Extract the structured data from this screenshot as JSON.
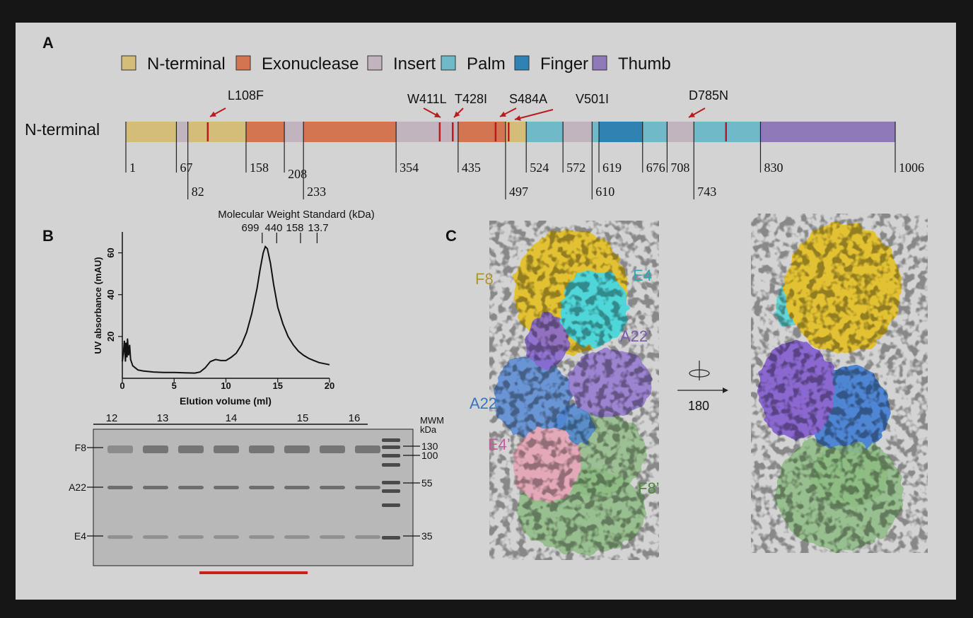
{
  "panel_a": {
    "label": "A",
    "row_label": "N-terminal",
    "legend": [
      {
        "label": "N-terminal",
        "color": "#d3bd78"
      },
      {
        "label": "Exonuclease",
        "color": "#d27550"
      },
      {
        "label": "Insert",
        "color": "#c2b4bf"
      },
      {
        "label": "Palm",
        "color": "#6fb9c8"
      },
      {
        "label": "Finger",
        "color": "#2f82b2"
      },
      {
        "label": "Thumb",
        "color": "#8f79b9"
      }
    ],
    "domains": [
      {
        "start": 1,
        "end": 67,
        "domain": "N-terminal"
      },
      {
        "start": 67,
        "end": 82,
        "domain": "Insert"
      },
      {
        "start": 82,
        "end": 158,
        "domain": "N-terminal"
      },
      {
        "start": 158,
        "end": 208,
        "domain": "Exonuclease"
      },
      {
        "start": 208,
        "end": 233,
        "domain": "Insert"
      },
      {
        "start": 233,
        "end": 354,
        "domain": "Exonuclease"
      },
      {
        "start": 354,
        "end": 435,
        "domain": "Insert"
      },
      {
        "start": 435,
        "end": 497,
        "domain": "Exonuclease"
      },
      {
        "start": 497,
        "end": 524,
        "domain": "N-terminal"
      },
      {
        "start": 524,
        "end": 572,
        "domain": "Palm"
      },
      {
        "start": 572,
        "end": 610,
        "domain": "Insert"
      },
      {
        "start": 610,
        "end": 619,
        "domain": "Palm"
      },
      {
        "start": 619,
        "end": 676,
        "domain": "Finger"
      },
      {
        "start": 676,
        "end": 708,
        "domain": "Palm"
      },
      {
        "start": 708,
        "end": 743,
        "domain": "Insert"
      },
      {
        "start": 743,
        "end": 830,
        "domain": "Palm"
      },
      {
        "start": 830,
        "end": 1006,
        "domain": "Thumb"
      }
    ],
    "ticks": [
      {
        "pos": 1,
        "label": "1",
        "row": 1
      },
      {
        "pos": 67,
        "label": "67",
        "row": 1
      },
      {
        "pos": 82,
        "label": "82",
        "row": 2
      },
      {
        "pos": 158,
        "label": "158",
        "row": 1
      },
      {
        "pos": 208,
        "label": "208",
        "row": 1.5
      },
      {
        "pos": 233,
        "label": "233",
        "row": 2
      },
      {
        "pos": 354,
        "label": "354",
        "row": 1
      },
      {
        "pos": 435,
        "label": "435",
        "row": 1
      },
      {
        "pos": 497,
        "label": "497",
        "row": 2
      },
      {
        "pos": 524,
        "label": "524",
        "row": 1
      },
      {
        "pos": 572,
        "label": "572",
        "row": 1
      },
      {
        "pos": 610,
        "label": "610",
        "row": 2
      },
      {
        "pos": 619,
        "label": "619",
        "row": 1
      },
      {
        "pos": 676,
        "label": "676",
        "row": 1
      },
      {
        "pos": 708,
        "label": "708",
        "row": 1
      },
      {
        "pos": 743,
        "label": "743",
        "row": 2
      },
      {
        "pos": 830,
        "label": "830",
        "row": 1
      },
      {
        "pos": 1006,
        "label": "1006",
        "row": 1
      }
    ],
    "mutations": [
      {
        "pos": 108,
        "label": "L108F"
      },
      {
        "pos": 411,
        "label": "W411L"
      },
      {
        "pos": 428,
        "label": "T428I"
      },
      {
        "pos": 484,
        "label": "S484A"
      },
      {
        "pos": 501,
        "label": "V501I"
      },
      {
        "pos": 785,
        "label": "D785N"
      }
    ],
    "mutation_color": "#b81c1c"
  },
  "panel_b": {
    "label": "B",
    "chart_data": {
      "type": "line",
      "title": "Molecular Weight Standard (kDa)",
      "xlabel": "Elution volume (ml)",
      "ylabel": "UV absorbance (mAU)",
      "xlim": [
        0,
        20
      ],
      "ylim": [
        0,
        70
      ],
      "xticks": [
        0,
        5,
        10,
        15,
        20
      ],
      "yticks": [
        20,
        40,
        60
      ],
      "standards": [
        {
          "label": "699",
          "x": 13.5
        },
        {
          "label": "440",
          "x": 14.9
        },
        {
          "label": "158",
          "x": 17.2
        },
        {
          "label": "13.7",
          "x": 18.8
        }
      ],
      "x": [
        0.0,
        0.1,
        0.2,
        0.3,
        0.35,
        0.45,
        0.5,
        0.6,
        0.7,
        0.8,
        1.0,
        1.5,
        2.0,
        3.0,
        4.0,
        5.0,
        6.0,
        7.0,
        7.5,
        8.0,
        8.5,
        9.0,
        9.5,
        10.0,
        10.5,
        11.0,
        11.5,
        12.0,
        12.5,
        13.0,
        13.3,
        13.6,
        13.8,
        14.0,
        14.3,
        14.6,
        15.0,
        15.5,
        16.0,
        16.5,
        17.0,
        17.5,
        18.0,
        18.5,
        19.0,
        19.5,
        20.0
      ],
      "y": [
        8,
        12,
        18,
        8,
        17,
        10,
        19,
        11,
        16,
        9,
        6,
        4,
        3.5,
        3,
        2.8,
        2.8,
        2.6,
        2.5,
        3,
        5,
        8,
        9,
        8.5,
        8.5,
        10,
        12,
        16,
        22,
        31,
        43,
        52,
        60,
        63,
        62,
        55,
        45,
        34,
        26,
        20,
        16,
        13,
        11,
        9.5,
        8.5,
        7.5,
        7,
        6.5
      ]
    },
    "gel": {
      "fraction_labels": [
        "12",
        "13",
        "14",
        "15",
        "16"
      ],
      "lane_labels": [
        "F8",
        "A22",
        "E4"
      ],
      "marker_header": "MWM\nkDa",
      "marker_header_line1": "MWM",
      "marker_header_line2": "kDa",
      "marker_labels": [
        "130",
        "100",
        "55",
        "35"
      ],
      "bar_color": "#c8201c"
    }
  },
  "panel_c": {
    "label": "C",
    "subunit_labels": [
      {
        "text": "F8",
        "color": "#b3942a"
      },
      {
        "text": "E4",
        "color": "#2ea9b3"
      },
      {
        "text": "A22’",
        "color": "#7a5cb0"
      },
      {
        "text": "A22",
        "color": "#3a73bf"
      },
      {
        "text": "E4’",
        "color": "#c65a9a"
      },
      {
        "text": "F8’",
        "color": "#4c8a3a"
      }
    ],
    "rotation_label": "180",
    "colors": {
      "F8": "#e2c132",
      "E4": "#4fd6d8",
      "A22_prime": "#8a68cf",
      "A22": "#4f86d4",
      "E4_prime": "#e4a9b8",
      "F8_prime": "#8dbb82"
    }
  }
}
